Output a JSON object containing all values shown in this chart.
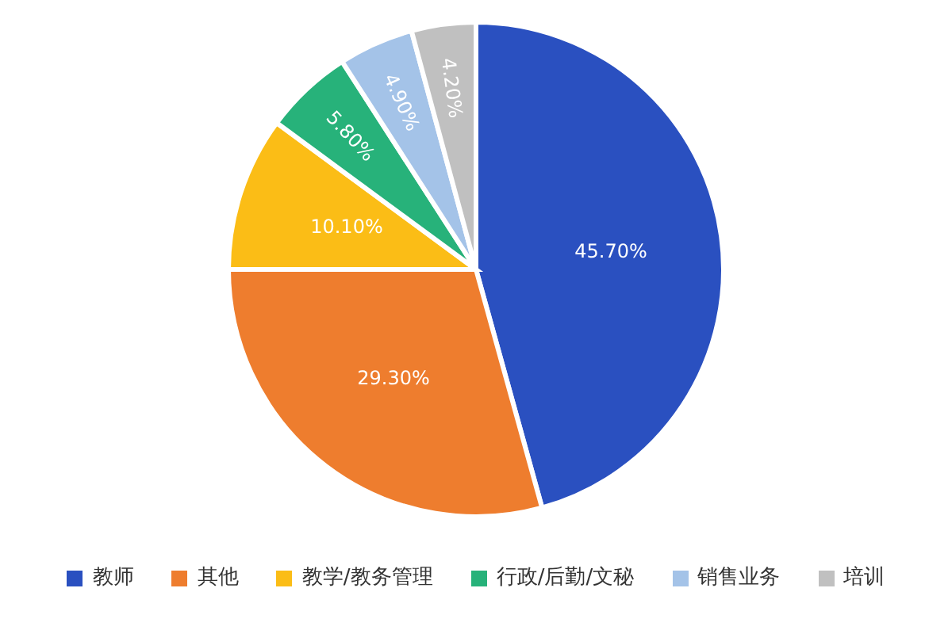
{
  "chart_data": {
    "type": "pie",
    "categories": [
      "教师",
      "其他",
      "教学/教务管理",
      "行政/后勤/文秘",
      "销售业务",
      "培训"
    ],
    "values": [
      45.7,
      29.3,
      10.1,
      5.8,
      4.9,
      4.2
    ],
    "colors": [
      "#2a50c0",
      "#ee7d2e",
      "#fbbd16",
      "#27b27a",
      "#a4c3e8",
      "#c0c0c0"
    ],
    "value_labels": [
      "45.70%",
      "29.30%",
      "10.10%",
      "5.80%",
      "4.90%",
      "4.20%"
    ],
    "legend": "bottom"
  }
}
